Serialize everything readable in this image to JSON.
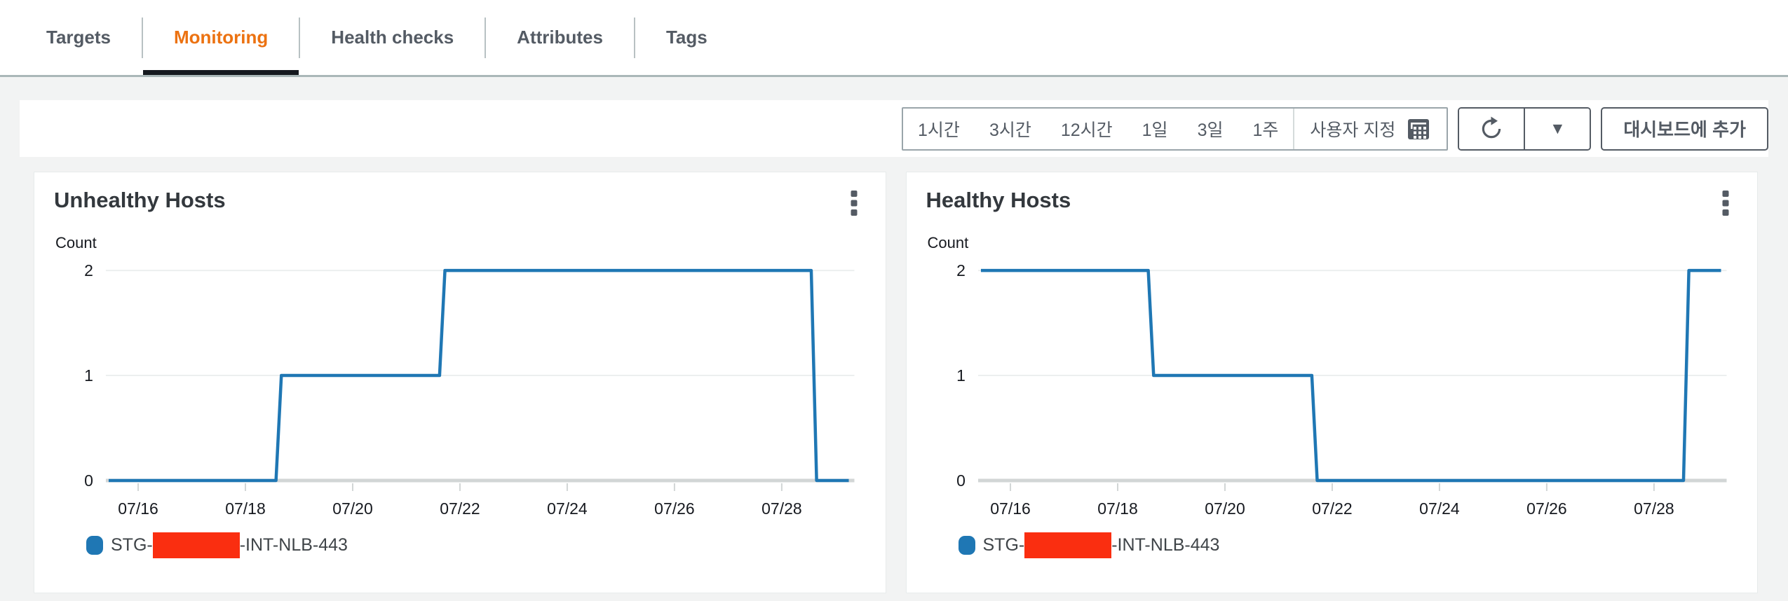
{
  "tabs": [
    {
      "label": "Targets",
      "active": false
    },
    {
      "label": "Monitoring",
      "active": true
    },
    {
      "label": "Health checks",
      "active": false
    },
    {
      "label": "Attributes",
      "active": false
    },
    {
      "label": "Tags",
      "active": false
    }
  ],
  "toolbar": {
    "time_range_buttons": [
      "1시간",
      "3시간",
      "12시간",
      "1일",
      "3일",
      "1주"
    ],
    "custom_range_label": "사용자 지정",
    "add_to_dashboard_label": "대시보드에 추가"
  },
  "colors": {
    "accent_orange": "#ec7211",
    "line_blue": "#1f77b4",
    "redaction_red": "#fa2e10",
    "control_border": "#545b64",
    "tab_underline": "#16191f",
    "grid_light": "#ecefef",
    "axis_gray": "#d2d6d6",
    "page_background": "#f2f3f3"
  },
  "chart_data": [
    {
      "type": "line",
      "title": "Unhealthy Hosts",
      "ylabel": "Count",
      "xlim": [
        15.45,
        29.25
      ],
      "ylim": [
        0,
        2
      ],
      "yticks": [
        0,
        1,
        2
      ],
      "xticks": [
        16,
        18,
        20,
        22,
        24,
        26,
        28
      ],
      "xtick_labels": [
        "07/16",
        "07/18",
        "07/20",
        "07/22",
        "07/24",
        "07/26",
        "07/28"
      ],
      "grid": true,
      "legend_position": "bottom",
      "series": [
        {
          "name": "STG-[redacted]-INT-NLB-443",
          "color": "#1f77b4",
          "points": [
            [
              15.45,
              0
            ],
            [
              18.57,
              0
            ],
            [
              18.67,
              1
            ],
            [
              21.62,
              1
            ],
            [
              21.72,
              2
            ],
            [
              28.55,
              2
            ],
            [
              28.65,
              0
            ],
            [
              29.25,
              0
            ]
          ]
        }
      ],
      "legend": {
        "prefix": "STG-",
        "suffix": "-INT-NLB-443",
        "middle_redacted": true
      }
    },
    {
      "type": "line",
      "title": "Healthy Hosts",
      "ylabel": "Count",
      "xlim": [
        15.45,
        29.25
      ],
      "ylim": [
        0,
        2
      ],
      "yticks": [
        0,
        1,
        2
      ],
      "xticks": [
        16,
        18,
        20,
        22,
        24,
        26,
        28
      ],
      "xtick_labels": [
        "07/16",
        "07/18",
        "07/20",
        "07/22",
        "07/24",
        "07/26",
        "07/28"
      ],
      "grid": true,
      "legend_position": "bottom",
      "series": [
        {
          "name": "STG-[redacted]-INT-NLB-443",
          "color": "#1f77b4",
          "points": [
            [
              15.45,
              2
            ],
            [
              18.57,
              2
            ],
            [
              18.67,
              1
            ],
            [
              21.62,
              1
            ],
            [
              21.72,
              0
            ],
            [
              28.55,
              0
            ],
            [
              28.65,
              2
            ],
            [
              29.25,
              2
            ]
          ]
        }
      ],
      "legend": {
        "prefix": "STG-",
        "suffix": "-INT-NLB-443",
        "middle_redacted": true
      }
    }
  ]
}
